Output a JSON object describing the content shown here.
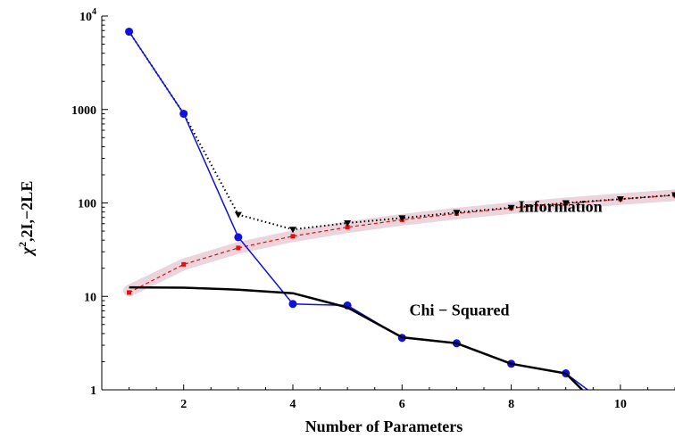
{
  "chart_data": {
    "type": "line",
    "xlabel": "Number of Parameters",
    "ylabel": "χ²,2I,−2LE",
    "ylabel_parts": {
      "chi": "χ",
      "sup": "2",
      "rest": ",2I,−2LE"
    },
    "x_range": [
      0.5,
      11
    ],
    "y_range": [
      1,
      10000
    ],
    "y_scale": "log",
    "x_ticks": [
      2,
      4,
      6,
      8,
      10
    ],
    "x_tick_labels": [
      "2",
      "4",
      "6",
      "8",
      "10"
    ],
    "y_ticks": [
      1,
      10,
      100,
      1000,
      10000
    ],
    "y_tick_labels": [
      "1",
      "10",
      "100",
      "1000"
    ],
    "y_top_label": {
      "base": "10",
      "exp": "4"
    },
    "grid": false,
    "annotations": [
      {
        "text": "Information",
        "x": 8.9,
        "y": 80
      },
      {
        "text": "Chi − Squared",
        "x": 7.05,
        "y": 6.3
      }
    ],
    "series": [
      {
        "style": "band",
        "color": "#e6c9d2",
        "x": [
          1,
          2,
          3,
          4,
          5,
          6,
          7,
          8,
          9,
          10,
          11
        ],
        "y": [
          11.5,
          22,
          33,
          44,
          55,
          66,
          77,
          88,
          99,
          110,
          121
        ]
      },
      {
        "style": "dashed-squares",
        "color": "#e01010",
        "x": [
          1,
          2,
          3,
          4,
          5,
          6,
          7,
          8,
          9,
          10,
          11
        ],
        "y": [
          11,
          22,
          33,
          44,
          55,
          66,
          77,
          88,
          99,
          110,
          121
        ]
      },
      {
        "style": "dotted-triangles",
        "color": "#000000",
        "x": [
          1,
          2,
          3,
          4,
          5,
          6,
          7,
          8,
          9,
          10,
          11
        ],
        "y": [
          6800,
          900,
          75,
          52,
          61,
          69,
          79,
          89,
          100,
          110,
          122
        ]
      },
      {
        "style": "blue-circles",
        "color": "#1010e0",
        "x": [
          1,
          2,
          3,
          4,
          5,
          6,
          7,
          8,
          9,
          9.4
        ],
        "y": [
          6800,
          900,
          43,
          8.3,
          8.0,
          3.6,
          3.15,
          1.9,
          1.5,
          1
        ]
      },
      {
        "style": "black-solid",
        "color": "#000000",
        "x": [
          1,
          2,
          3,
          4,
          5,
          6,
          7,
          8,
          9,
          9.3
        ],
        "y": [
          12.5,
          12.4,
          11.8,
          10.8,
          7.6,
          3.65,
          3.15,
          1.9,
          1.5,
          1
        ]
      }
    ]
  }
}
